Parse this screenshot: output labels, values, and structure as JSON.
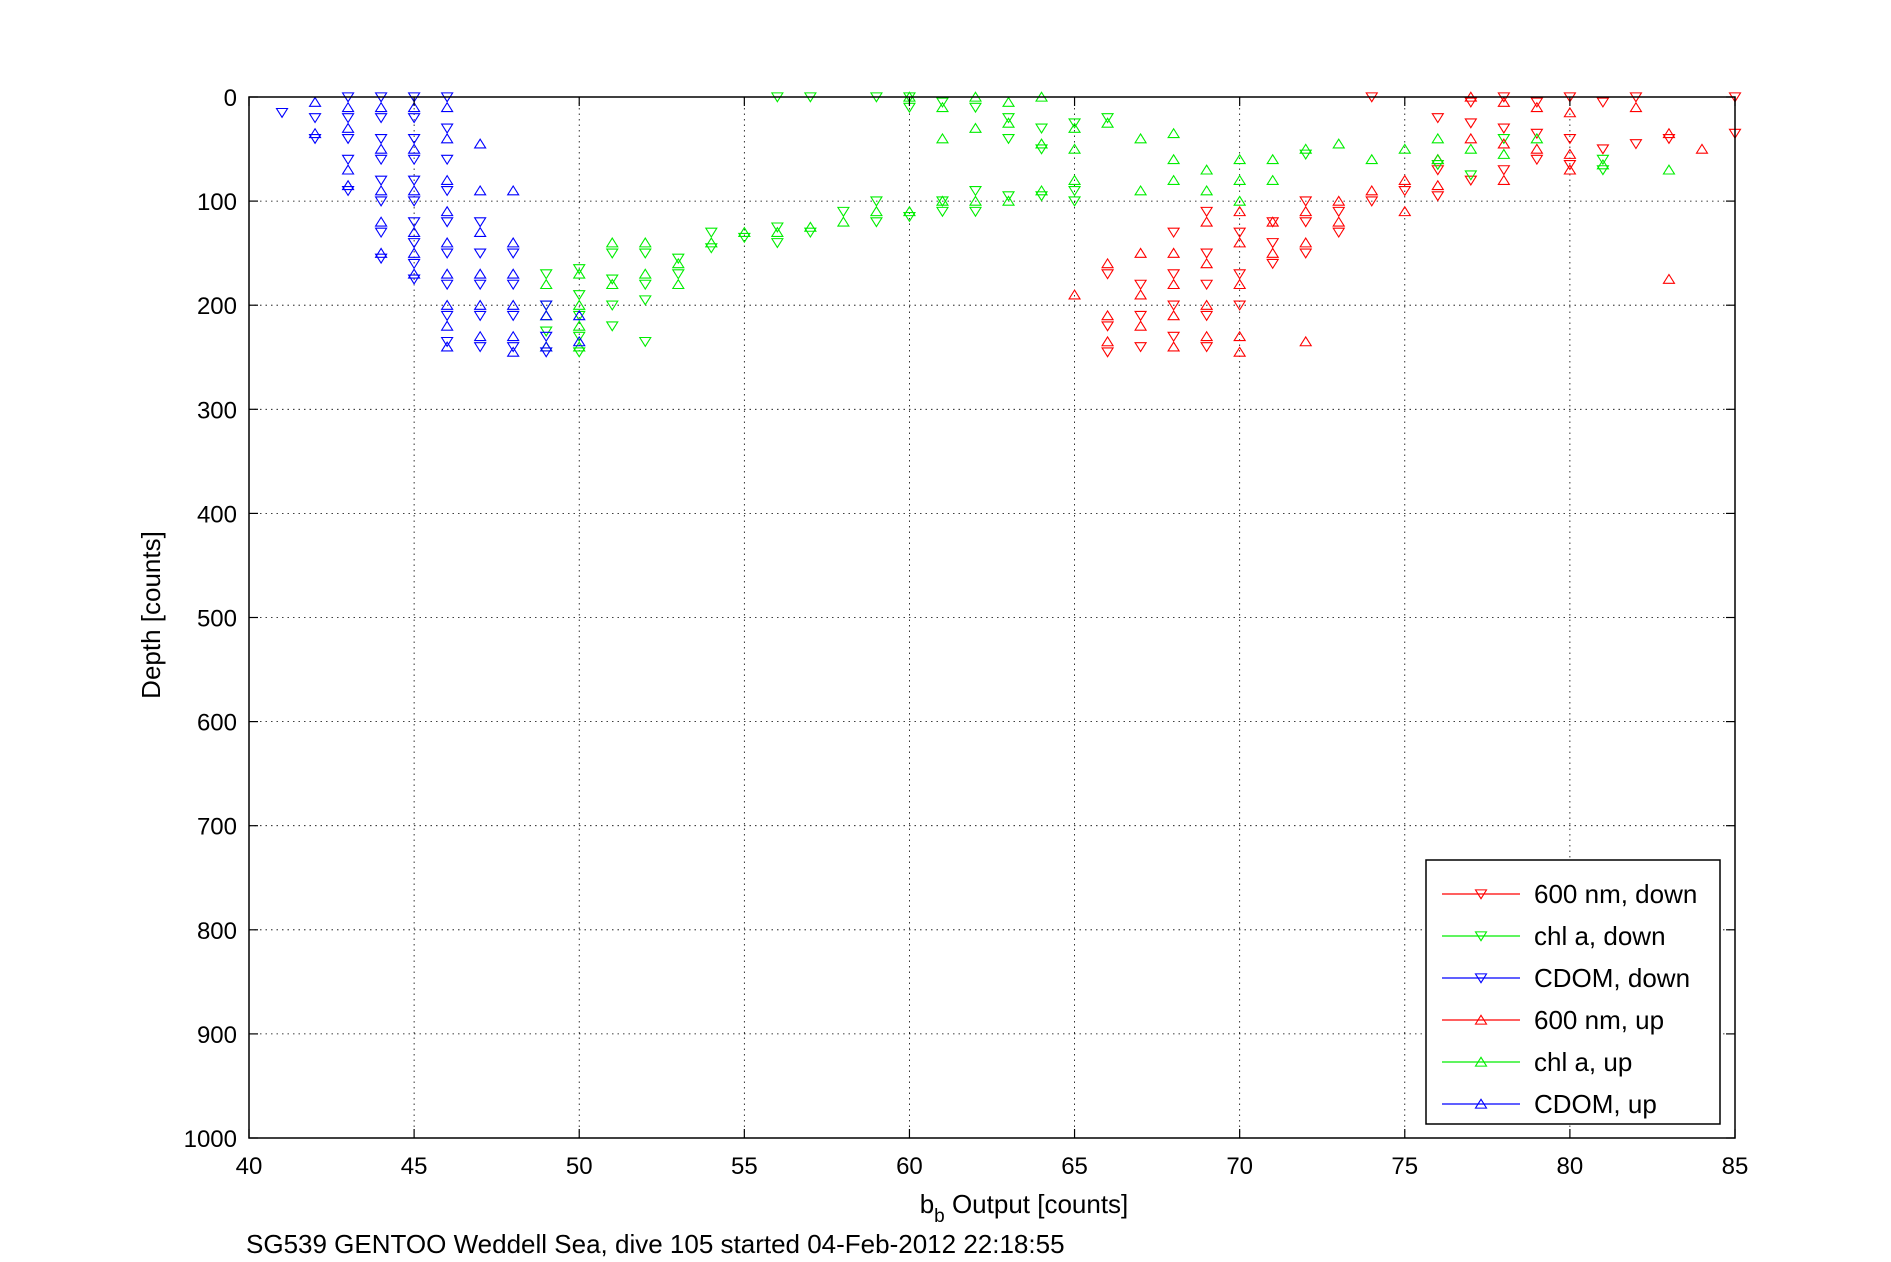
{
  "chart_data": {
    "type": "scatter",
    "xlabel_main": "b",
    "xlabel_sub": "b",
    "xlabel_rest": " Output [counts]",
    "ylabel": "Depth [counts]",
    "caption": "SG539 GENTOO Weddell Sea, dive 105 started 04-Feb-2012 22:18:55",
    "xlim": [
      40,
      85
    ],
    "ylim": [
      0,
      1000
    ],
    "y_reversed": true,
    "grid": true,
    "legend_position": "bottom-right",
    "xticks": [
      "40",
      "45",
      "50",
      "55",
      "60",
      "65",
      "70",
      "75",
      "80",
      "85"
    ],
    "yticks": [
      "0",
      "100",
      "200",
      "300",
      "400",
      "500",
      "600",
      "700",
      "800",
      "900",
      "1000"
    ],
    "series": [
      {
        "name": "600 nm, down",
        "color": "#ff0000",
        "marker": "triangle-down",
        "points": [
          [
            74,
            0
          ],
          [
            77,
            5
          ],
          [
            78,
            0
          ],
          [
            79,
            5
          ],
          [
            80,
            0
          ],
          [
            81,
            5
          ],
          [
            82,
            0
          ],
          [
            85,
            0
          ],
          [
            76,
            20
          ],
          [
            77,
            25
          ],
          [
            78,
            30
          ],
          [
            79,
            35
          ],
          [
            80,
            40
          ],
          [
            81,
            50
          ],
          [
            82,
            45
          ],
          [
            83,
            40
          ],
          [
            85,
            35
          ],
          [
            76,
            70
          ],
          [
            77,
            80
          ],
          [
            78,
            70
          ],
          [
            79,
            60
          ],
          [
            80,
            65
          ],
          [
            76,
            95
          ],
          [
            75,
            90
          ],
          [
            74,
            100
          ],
          [
            73,
            110
          ],
          [
            73,
            130
          ],
          [
            72,
            120
          ],
          [
            72,
            150
          ],
          [
            71,
            140
          ],
          [
            71,
            160
          ],
          [
            70,
            130
          ],
          [
            70,
            170
          ],
          [
            70,
            200
          ],
          [
            69,
            110
          ],
          [
            69,
            150
          ],
          [
            69,
            180
          ],
          [
            69,
            210
          ],
          [
            69,
            240
          ],
          [
            68,
            130
          ],
          [
            68,
            170
          ],
          [
            68,
            200
          ],
          [
            68,
            230
          ],
          [
            67,
            180
          ],
          [
            67,
            210
          ],
          [
            67,
            240
          ],
          [
            66,
            170
          ],
          [
            66,
            220
          ],
          [
            66,
            245
          ],
          [
            72,
            100
          ],
          [
            71,
            120
          ]
        ]
      },
      {
        "name": "chl a, down",
        "color": "#00ee00",
        "marker": "triangle-down",
        "points": [
          [
            56,
            0
          ],
          [
            57,
            0
          ],
          [
            59,
            0
          ],
          [
            60,
            0
          ],
          [
            60,
            10
          ],
          [
            61,
            5
          ],
          [
            62,
            10
          ],
          [
            63,
            20
          ],
          [
            64,
            30
          ],
          [
            65,
            25
          ],
          [
            66,
            20
          ],
          [
            63,
            40
          ],
          [
            64,
            50
          ],
          [
            62,
            90
          ],
          [
            63,
            95
          ],
          [
            61,
            100
          ],
          [
            61,
            110
          ],
          [
            60,
            115
          ],
          [
            59,
            100
          ],
          [
            59,
            120
          ],
          [
            58,
            110
          ],
          [
            57,
            130
          ],
          [
            56,
            125
          ],
          [
            56,
            140
          ],
          [
            55,
            135
          ],
          [
            54,
            130
          ],
          [
            54,
            145
          ],
          [
            53,
            155
          ],
          [
            53,
            170
          ],
          [
            52,
            150
          ],
          [
            52,
            180
          ],
          [
            52,
            195
          ],
          [
            51,
            150
          ],
          [
            51,
            175
          ],
          [
            51,
            200
          ],
          [
            51,
            220
          ],
          [
            50,
            165
          ],
          [
            50,
            190
          ],
          [
            50,
            210
          ],
          [
            50,
            230
          ],
          [
            50,
            245
          ],
          [
            49,
            170
          ],
          [
            49,
            200
          ],
          [
            49,
            225
          ],
          [
            52,
            235
          ],
          [
            65,
            90
          ],
          [
            65,
            100
          ],
          [
            64,
            95
          ],
          [
            62,
            110
          ],
          [
            76,
            65
          ],
          [
            77,
            75
          ],
          [
            81,
            60
          ],
          [
            81,
            70
          ],
          [
            78,
            40
          ],
          [
            72,
            55
          ]
        ]
      },
      {
        "name": "CDOM, down",
        "color": "#0000ff",
        "marker": "triangle-down",
        "points": [
          [
            41,
            15
          ],
          [
            42,
            20
          ],
          [
            43,
            0
          ],
          [
            43,
            20
          ],
          [
            43,
            40
          ],
          [
            43,
            60
          ],
          [
            43,
            90
          ],
          [
            44,
            0
          ],
          [
            44,
            20
          ],
          [
            44,
            40
          ],
          [
            44,
            60
          ],
          [
            44,
            80
          ],
          [
            44,
            100
          ],
          [
            44,
            130
          ],
          [
            44,
            155
          ],
          [
            45,
            0
          ],
          [
            45,
            20
          ],
          [
            45,
            40
          ],
          [
            45,
            60
          ],
          [
            45,
            80
          ],
          [
            45,
            100
          ],
          [
            45,
            120
          ],
          [
            45,
            140
          ],
          [
            45,
            160
          ],
          [
            45,
            175
          ],
          [
            46,
            0
          ],
          [
            46,
            30
          ],
          [
            46,
            60
          ],
          [
            46,
            90
          ],
          [
            46,
            120
          ],
          [
            46,
            150
          ],
          [
            46,
            180
          ],
          [
            46,
            210
          ],
          [
            46,
            235
          ],
          [
            47,
            120
          ],
          [
            47,
            150
          ],
          [
            47,
            180
          ],
          [
            47,
            210
          ],
          [
            47,
            240
          ],
          [
            48,
            150
          ],
          [
            48,
            180
          ],
          [
            48,
            210
          ],
          [
            48,
            240
          ],
          [
            49,
            200
          ],
          [
            49,
            230
          ],
          [
            49,
            245
          ],
          [
            42,
            40
          ]
        ]
      },
      {
        "name": "600 nm, up",
        "color": "#ff0000",
        "marker": "triangle-up",
        "points": [
          [
            77,
            0
          ],
          [
            78,
            5
          ],
          [
            79,
            10
          ],
          [
            80,
            15
          ],
          [
            82,
            10
          ],
          [
            83,
            35
          ],
          [
            84,
            50
          ],
          [
            77,
            40
          ],
          [
            78,
            45
          ],
          [
            79,
            50
          ],
          [
            80,
            55
          ],
          [
            80,
            70
          ],
          [
            78,
            80
          ],
          [
            76,
            60
          ],
          [
            75,
            80
          ],
          [
            75,
            110
          ],
          [
            74,
            90
          ],
          [
            73,
            100
          ],
          [
            73,
            120
          ],
          [
            72,
            110
          ],
          [
            72,
            140
          ],
          [
            72,
            235
          ],
          [
            71,
            120
          ],
          [
            71,
            150
          ],
          [
            70,
            110
          ],
          [
            70,
            140
          ],
          [
            70,
            180
          ],
          [
            70,
            230
          ],
          [
            70,
            245
          ],
          [
            69,
            120
          ],
          [
            69,
            160
          ],
          [
            69,
            200
          ],
          [
            69,
            230
          ],
          [
            68,
            150
          ],
          [
            68,
            180
          ],
          [
            68,
            210
          ],
          [
            68,
            240
          ],
          [
            67,
            150
          ],
          [
            67,
            190
          ],
          [
            67,
            220
          ],
          [
            66,
            160
          ],
          [
            66,
            210
          ],
          [
            66,
            235
          ],
          [
            65,
            190
          ],
          [
            83,
            175
          ],
          [
            76,
            85
          ]
        ]
      },
      {
        "name": "chl a, up",
        "color": "#00ee00",
        "marker": "triangle-up",
        "points": [
          [
            60,
            0
          ],
          [
            61,
            10
          ],
          [
            62,
            0
          ],
          [
            63,
            5
          ],
          [
            64,
            0
          ],
          [
            61,
            40
          ],
          [
            62,
            30
          ],
          [
            63,
            25
          ],
          [
            64,
            45
          ],
          [
            65,
            30
          ],
          [
            65,
            50
          ],
          [
            66,
            25
          ],
          [
            67,
            40
          ],
          [
            68,
            35
          ],
          [
            68,
            60
          ],
          [
            68,
            80
          ],
          [
            69,
            70
          ],
          [
            69,
            90
          ],
          [
            70,
            60
          ],
          [
            70,
            80
          ],
          [
            70,
            100
          ],
          [
            71,
            60
          ],
          [
            71,
            80
          ],
          [
            72,
            50
          ],
          [
            73,
            45
          ],
          [
            74,
            60
          ],
          [
            75,
            50
          ],
          [
            76,
            40
          ],
          [
            76,
            60
          ],
          [
            77,
            50
          ],
          [
            78,
            55
          ],
          [
            79,
            40
          ],
          [
            81,
            65
          ],
          [
            83,
            70
          ],
          [
            67,
            90
          ],
          [
            65,
            80
          ],
          [
            64,
            90
          ],
          [
            63,
            100
          ],
          [
            62,
            100
          ],
          [
            61,
            100
          ],
          [
            60,
            110
          ],
          [
            59,
            110
          ],
          [
            58,
            120
          ],
          [
            57,
            125
          ],
          [
            56,
            130
          ],
          [
            55,
            130
          ],
          [
            54,
            140
          ],
          [
            53,
            160
          ],
          [
            52,
            170
          ],
          [
            51,
            180
          ],
          [
            50,
            170
          ],
          [
            50,
            200
          ],
          [
            50,
            220
          ],
          [
            50,
            240
          ],
          [
            49,
            180
          ],
          [
            49,
            210
          ],
          [
            49,
            240
          ],
          [
            53,
            180
          ],
          [
            52,
            140
          ],
          [
            51,
            140
          ]
        ]
      },
      {
        "name": "CDOM, up",
        "color": "#0000ff",
        "marker": "triangle-up",
        "points": [
          [
            42,
            5
          ],
          [
            42,
            35
          ],
          [
            43,
            10
          ],
          [
            43,
            30
          ],
          [
            43,
            70
          ],
          [
            43,
            85
          ],
          [
            44,
            10
          ],
          [
            44,
            50
          ],
          [
            44,
            90
          ],
          [
            44,
            120
          ],
          [
            44,
            150
          ],
          [
            45,
            10
          ],
          [
            45,
            50
          ],
          [
            45,
            90
          ],
          [
            45,
            130
          ],
          [
            45,
            150
          ],
          [
            45,
            170
          ],
          [
            46,
            10
          ],
          [
            46,
            40
          ],
          [
            46,
            80
          ],
          [
            46,
            110
          ],
          [
            46,
            140
          ],
          [
            46,
            170
          ],
          [
            46,
            200
          ],
          [
            46,
            220
          ],
          [
            46,
            240
          ],
          [
            47,
            45
          ],
          [
            47,
            90
          ],
          [
            47,
            130
          ],
          [
            47,
            170
          ],
          [
            47,
            200
          ],
          [
            47,
            230
          ],
          [
            48,
            90
          ],
          [
            48,
            140
          ],
          [
            48,
            170
          ],
          [
            48,
            200
          ],
          [
            48,
            230
          ],
          [
            48,
            245
          ],
          [
            49,
            210
          ],
          [
            49,
            240
          ],
          [
            50,
            210
          ],
          [
            50,
            235
          ]
        ]
      }
    ]
  }
}
